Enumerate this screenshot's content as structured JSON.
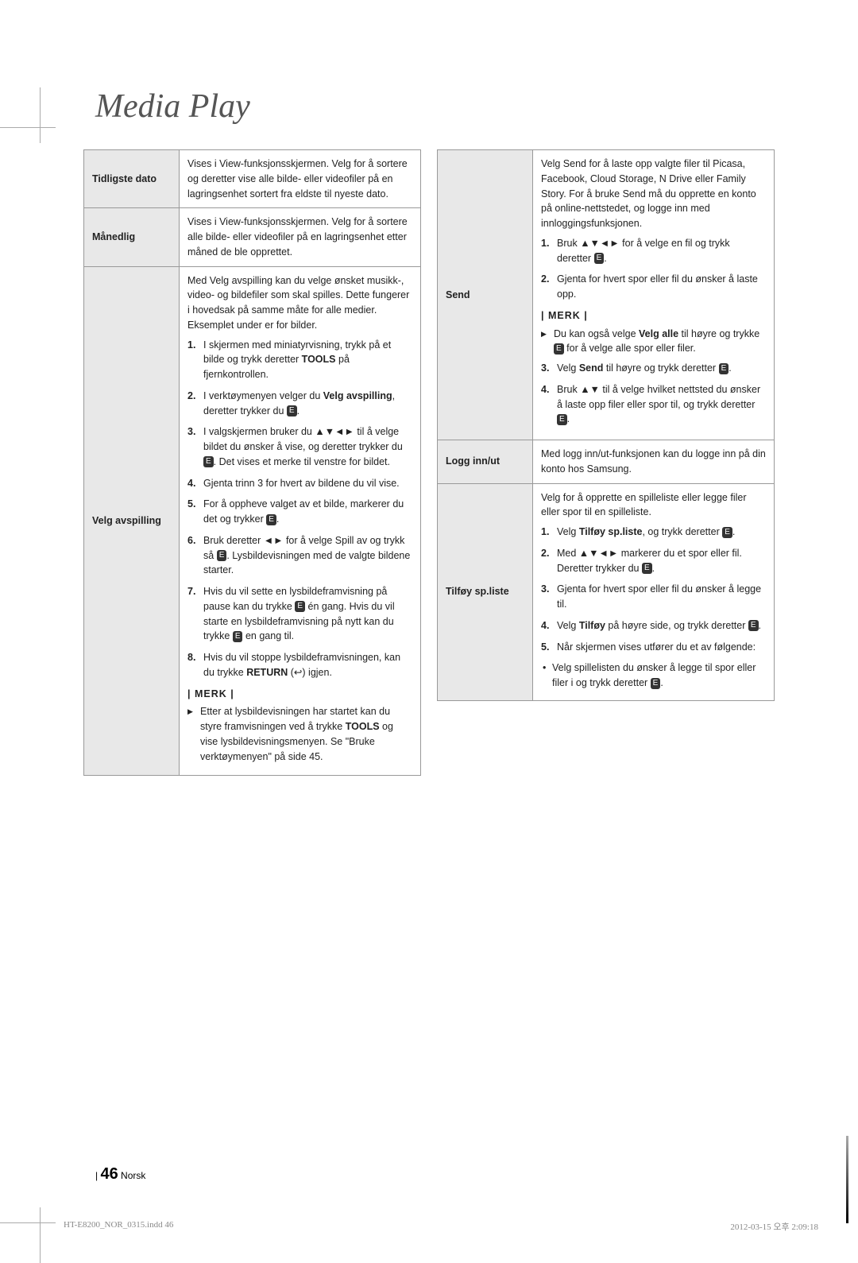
{
  "pageTitle": "Media Play",
  "leftTable": {
    "rows": [
      {
        "label": "Tidligste dato",
        "content": {
          "intro": "Vises i View-funksjonsskjermen. Velg for å sortere og deretter vise alle bilde- eller videofiler på en lagringsenhet sortert fra eldste til nyeste dato."
        }
      },
      {
        "label": "Månedlig",
        "content": {
          "intro": "Vises i View-funksjonsskjermen. Velg for å sortere alle bilde- eller videofiler på en lagringsenhet etter måned de ble opprettet."
        }
      },
      {
        "label": "Velg avspilling",
        "content": {
          "intro": "Med Velg avspilling kan du velge ønsket musikk-, video- og bildefiler som skal spilles. Dette fungerer i hovedsak på samme måte for alle medier. Eksemplet under er for bilder.",
          "steps": [
            "I skjermen med miniatyrvisning, trykk på et bilde og trykk deretter TOOLS på fjernkontrollen.",
            "I verktøymenyen velger du Velg avspilling, deretter trykker du E.",
            "I valgskjermen bruker du ▲▼◄► til å velge bildet du ønsker å vise, og deretter trykker du E. Det vises et merke til venstre for bildet.",
            "Gjenta trinn 3 for hvert av bildene du vil vise.",
            "For å oppheve valget av et bilde, markerer du det og trykker E.",
            "Bruk deretter ◄► for å velge Spill av og trykk så E. Lysbildevisningen med de valgte bildene starter.",
            "Hvis du vil sette en lysbildeframvisning på pause kan du trykke E én gang. Hvis du vil starte en lysbildeframvisning på nytt kan du trykke E en gang til.",
            "Hvis du vil stoppe lysbildeframvisningen, kan du trykke RETURN (↩) igjen."
          ],
          "noteLabel": "| MERK |",
          "notes": [
            "Etter at lysbildevisningen har startet kan du styre framvisningen ved å trykke TOOLS og vise lysbildevisningsmenyen. Se \"Bruke verktøymenyen\" på side 45."
          ]
        }
      }
    ]
  },
  "rightTable": {
    "rows": [
      {
        "label": "Send",
        "content": {
          "intro": "Velg Send for å laste opp valgte filer til Picasa, Facebook, Cloud Storage, N Drive eller Family Story. For å bruke Send må du opprette en konto på online-nettstedet, og logge inn med innloggingsfunksjonen.",
          "steps": [
            "Bruk ▲▼◄► for å velge en fil og trykk deretter E.",
            "Gjenta for hvert spor eller fil du ønsker å laste opp."
          ],
          "noteLabel": "| MERK |",
          "notes": [
            "Du kan også velge Velg alle til høyre og trykke E for å velge alle spor eller filer."
          ],
          "stepsAfter": [
            "Velg Send til høyre og trykk deretter E.",
            "Bruk ▲▼ til å velge hvilket nettsted du ønsker å laste opp filer eller spor til, og trykk deretter E."
          ]
        }
      },
      {
        "label": "Logg inn/ut",
        "content": {
          "intro": "Med logg inn/ut-funksjonen kan du logge inn på din konto hos Samsung."
        }
      },
      {
        "label": "Tilføy sp.liste",
        "content": {
          "intro": "Velg for å opprette en spilleliste eller legge filer eller spor til en spilleliste.",
          "steps": [
            "Velg Tilføy sp.liste, og trykk deretter E.",
            "Med ▲▼◄► markerer du et spor eller fil. Deretter trykker du E.",
            "Gjenta for hvert spor eller fil du ønsker å legge til.",
            "Velg Tilføy på høyre side, og trykk deretter E.",
            "Når skjermen vises utfører du et av følgende:"
          ],
          "bullets": [
            "Velg spillelisten du ønsker å legge til spor eller filer i og trykk deretter E."
          ]
        }
      }
    ]
  },
  "footer": {
    "pageNum": "46",
    "lang": "Norsk"
  },
  "printFooter": {
    "file": "HT-E8200_NOR_0315.indd   46",
    "timestamp": "2012-03-15   오후 2:09:18"
  }
}
